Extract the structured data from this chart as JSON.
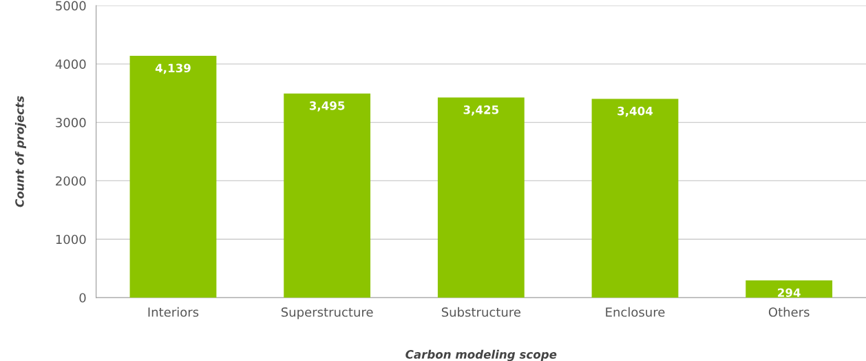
{
  "chart_data": {
    "type": "bar",
    "xlabel": "Carbon modeling scope",
    "ylabel": "Count of projects",
    "categories": [
      "Interiors",
      "Superstructure",
      "Substructure",
      "Enclosure",
      "Others"
    ],
    "values": [
      4139,
      3495,
      3425,
      3404,
      294
    ],
    "value_labels": [
      "4,139",
      "3,495",
      "3,425",
      "3,404",
      "294"
    ],
    "color": "#8cc400",
    "ylim": [
      0,
      5000
    ],
    "yticks": [
      0,
      1000,
      2000,
      3000,
      4000,
      5000
    ],
    "grid": "y",
    "legend": false
  }
}
